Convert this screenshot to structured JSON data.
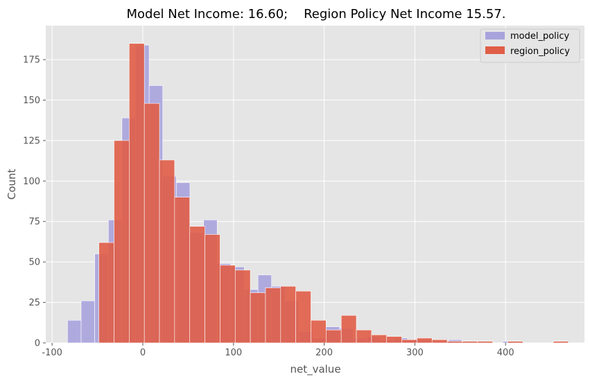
{
  "chart_data": {
    "type": "bar",
    "title": "Model Net Income: 16.60;    Region Policy Net Income 15.57.",
    "xlabel": "net_value",
    "ylabel": "Count",
    "xlim": [
      -107,
      487
    ],
    "ylim": [
      0,
      196
    ],
    "xticks": [
      -100,
      0,
      100,
      200,
      300,
      400
    ],
    "yticks": [
      0,
      25,
      50,
      75,
      100,
      125,
      150,
      175
    ],
    "grid": true,
    "legend_position": "top-right",
    "colors": {
      "model_policy": "#a9a3dd",
      "region_policy": "#e05d47"
    },
    "series": [
      {
        "name": "model_policy",
        "bin_width": 15,
        "bins_start": [
          -83,
          -68,
          -53,
          -38,
          -23,
          -8,
          7,
          22,
          37,
          52,
          67,
          82,
          97,
          112,
          127,
          142,
          157,
          172,
          187,
          202,
          217,
          232,
          247,
          262,
          277,
          292,
          307,
          322,
          337,
          352,
          367,
          382,
          397
        ],
        "values": [
          14,
          26,
          55,
          76,
          139,
          184,
          159,
          103,
          99,
          68,
          76,
          49,
          47,
          33,
          42,
          35,
          26,
          7,
          3,
          10,
          9,
          3,
          4,
          2,
          3,
          2,
          2,
          1,
          2,
          1,
          1,
          0,
          1
        ]
      },
      {
        "name": "region_policy",
        "bin_width": 16.7,
        "bins_start": [
          -48.4,
          -31.7,
          -15,
          1.7,
          18.4,
          35.1,
          51.8,
          68.5,
          85.2,
          101.9,
          118.6,
          135.3,
          152,
          168.7,
          185.4,
          202.1,
          218.8,
          235.5,
          252.2,
          268.9,
          285.6,
          302.3,
          319,
          335.7,
          352.4,
          369.1,
          385.8,
          402.5,
          419.2,
          435.9,
          452.6
        ],
        "values": [
          62,
          125,
          185,
          148,
          113,
          90,
          72,
          67,
          48,
          45,
          31,
          34,
          35,
          32,
          14,
          8,
          17,
          8,
          5,
          4,
          2,
          3,
          2,
          1,
          1,
          1,
          0,
          1,
          0,
          0,
          1
        ]
      }
    ]
  }
}
